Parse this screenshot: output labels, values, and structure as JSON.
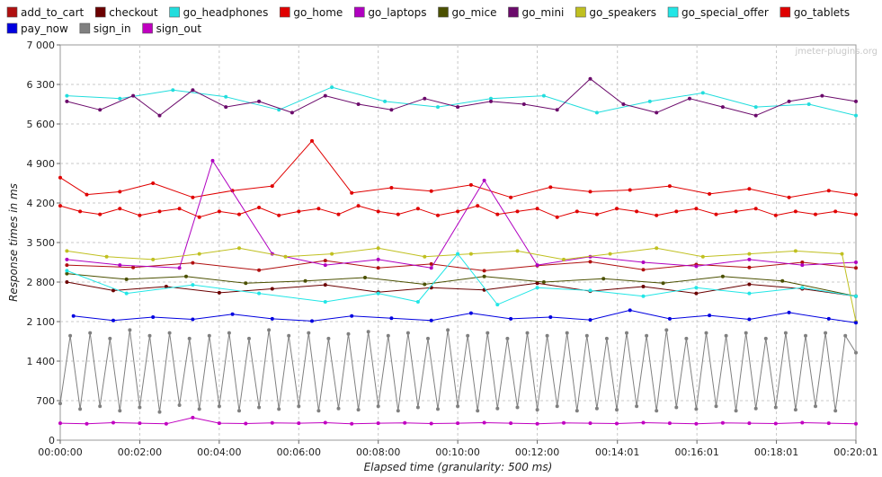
{
  "watermark": "jmeter-plugins.org",
  "chart_data": {
    "type": "line",
    "xlabel": "Elapsed time (granularity: 500 ms)",
    "ylabel": "Response times in ms",
    "ylim": [
      0,
      7000
    ],
    "xlim_seconds": [
      0,
      1201
    ],
    "y_ticks": [
      0,
      700,
      1400,
      2100,
      2800,
      3500,
      4200,
      4900,
      5600,
      6300,
      7000
    ],
    "y_tick_labels": [
      "0",
      "700",
      "1 400",
      "2 100",
      "2 800",
      "3 500",
      "4 200",
      "4 900",
      "5 600",
      "6 300",
      "7 000"
    ],
    "x_ticks_seconds": [
      0,
      120,
      240,
      360,
      480,
      600,
      720,
      841,
      961,
      1081,
      1201
    ],
    "x_tick_labels": [
      "00:00:00",
      "00:02:00",
      "00:04:00",
      "00:06:00",
      "00:08:00",
      "00:10:00",
      "00:12:00",
      "00:14:01",
      "00:16:01",
      "00:18:01",
      "00:20:01"
    ],
    "grid": true,
    "legend_position": "top",
    "series": [
      {
        "name": "add_to_cart",
        "color": "#b01010",
        "x": [
          10,
          110,
          200,
          300,
          400,
          480,
          560,
          640,
          720,
          800,
          880,
          960,
          1040,
          1120,
          1201
        ],
        "y": [
          3100,
          3060,
          3140,
          3010,
          3180,
          3050,
          3120,
          3000,
          3090,
          3160,
          3020,
          3110,
          3060,
          3150,
          3050
        ]
      },
      {
        "name": "checkout",
        "color": "#6b0000",
        "x": [
          10,
          80,
          160,
          240,
          320,
          400,
          480,
          560,
          640,
          720,
          800,
          880,
          960,
          1040,
          1120,
          1201
        ],
        "y": [
          2800,
          2650,
          2720,
          2610,
          2680,
          2750,
          2620,
          2700,
          2660,
          2780,
          2640,
          2720,
          2600,
          2760,
          2680,
          2550
        ]
      },
      {
        "name": "go_headphones",
        "color": "#22dddd",
        "x": [
          10,
          90,
          170,
          250,
          330,
          410,
          490,
          570,
          650,
          730,
          810,
          890,
          970,
          1050,
          1130,
          1201
        ],
        "y": [
          6100,
          6050,
          6200,
          6080,
          5850,
          6250,
          6000,
          5900,
          6050,
          6100,
          5800,
          6000,
          6150,
          5900,
          5950,
          5750
        ]
      },
      {
        "name": "go_home",
        "color": "#e00000",
        "x": [
          0,
          40,
          90,
          140,
          200,
          260,
          320,
          380,
          440,
          500,
          560,
          620,
          680,
          740,
          800,
          860,
          920,
          980,
          1040,
          1100,
          1160,
          1201
        ],
        "y": [
          4650,
          4350,
          4400,
          4550,
          4300,
          4420,
          4500,
          5300,
          4380,
          4470,
          4410,
          4520,
          4300,
          4480,
          4400,
          4430,
          4500,
          4360,
          4450,
          4300,
          4420,
          4350
        ]
      },
      {
        "name": "go_laptops",
        "color": "#b000c0",
        "x": [
          10,
          90,
          180,
          230,
          320,
          400,
          480,
          560,
          640,
          720,
          800,
          880,
          960,
          1040,
          1120,
          1201
        ],
        "y": [
          3200,
          3100,
          3050,
          4950,
          3300,
          3100,
          3200,
          3050,
          4600,
          3100,
          3250,
          3150,
          3080,
          3200,
          3100,
          3150
        ]
      },
      {
        "name": "go_mice",
        "color": "#4b5000",
        "x": [
          10,
          100,
          190,
          280,
          370,
          460,
          550,
          640,
          730,
          820,
          910,
          1000,
          1090,
          1201
        ],
        "y": [
          2950,
          2850,
          2900,
          2780,
          2820,
          2880,
          2760,
          2900,
          2800,
          2860,
          2780,
          2900,
          2820,
          2550
        ]
      },
      {
        "name": "go_mini",
        "color": "#6b0a6b",
        "x": [
          10,
          60,
          110,
          150,
          200,
          250,
          300,
          350,
          400,
          450,
          500,
          550,
          600,
          650,
          700,
          750,
          800,
          850,
          900,
          950,
          1000,
          1050,
          1100,
          1150,
          1201
        ],
        "y": [
          6000,
          5850,
          6100,
          5750,
          6200,
          5900,
          6000,
          5800,
          6100,
          5950,
          5850,
          6050,
          5900,
          6000,
          5950,
          5850,
          6400,
          5950,
          5800,
          6050,
          5900,
          5750,
          6000,
          6100,
          6000
        ]
      },
      {
        "name": "go_speakers",
        "color": "#c0c020",
        "x": [
          10,
          70,
          140,
          210,
          270,
          340,
          410,
          480,
          550,
          620,
          690,
          760,
          830,
          900,
          970,
          1040,
          1110,
          1180,
          1201
        ],
        "y": [
          3350,
          3250,
          3200,
          3300,
          3400,
          3250,
          3300,
          3400,
          3250,
          3300,
          3350,
          3200,
          3300,
          3400,
          3250,
          3300,
          3350,
          3300,
          2100
        ]
      },
      {
        "name": "go_special_offer",
        "color": "#22e6e6",
        "x": [
          10,
          100,
          200,
          300,
          400,
          480,
          540,
          600,
          660,
          720,
          800,
          880,
          960,
          1040,
          1120,
          1201
        ],
        "y": [
          3000,
          2600,
          2750,
          2600,
          2450,
          2600,
          2450,
          3300,
          2400,
          2700,
          2650,
          2550,
          2700,
          2600,
          2700,
          2550
        ]
      },
      {
        "name": "go_tablets",
        "color": "#e00000",
        "x": [
          0,
          30,
          60,
          90,
          120,
          150,
          180,
          210,
          240,
          270,
          300,
          330,
          360,
          390,
          420,
          450,
          480,
          510,
          540,
          570,
          600,
          630,
          660,
          690,
          720,
          750,
          780,
          810,
          840,
          870,
          900,
          930,
          960,
          990,
          1020,
          1050,
          1080,
          1110,
          1140,
          1170,
          1201
        ],
        "y": [
          4150,
          4050,
          4000,
          4100,
          3980,
          4050,
          4100,
          3950,
          4050,
          4000,
          4120,
          3980,
          4050,
          4100,
          4000,
          4150,
          4050,
          4000,
          4100,
          3980,
          4050,
          4150,
          4000,
          4050,
          4100,
          3950,
          4050,
          4000,
          4100,
          4050,
          3980,
          4050,
          4100,
          4000,
          4050,
          4100,
          3980,
          4050,
          4000,
          4050,
          4000
        ]
      },
      {
        "name": "pay_now",
        "color": "#0000e0",
        "x": [
          20,
          80,
          140,
          200,
          260,
          320,
          380,
          440,
          500,
          560,
          620,
          680,
          740,
          800,
          860,
          920,
          980,
          1040,
          1100,
          1160,
          1201
        ],
        "y": [
          2200,
          2120,
          2180,
          2140,
          2230,
          2150,
          2110,
          2200,
          2160,
          2120,
          2250,
          2150,
          2180,
          2130,
          2300,
          2150,
          2210,
          2140,
          2260,
          2150,
          2080
        ]
      },
      {
        "name": "sign_in",
        "color": "#808080",
        "x": [
          0,
          15,
          30,
          45,
          60,
          75,
          90,
          105,
          120,
          135,
          150,
          165,
          180,
          195,
          210,
          225,
          240,
          255,
          270,
          285,
          300,
          315,
          330,
          345,
          360,
          375,
          390,
          405,
          420,
          435,
          450,
          465,
          480,
          495,
          510,
          525,
          540,
          555,
          570,
          585,
          600,
          615,
          630,
          645,
          660,
          675,
          690,
          705,
          720,
          735,
          750,
          765,
          780,
          795,
          810,
          825,
          840,
          855,
          870,
          885,
          900,
          915,
          930,
          945,
          960,
          975,
          990,
          1005,
          1020,
          1035,
          1050,
          1065,
          1080,
          1095,
          1110,
          1125,
          1140,
          1155,
          1170,
          1185,
          1201
        ],
        "y": [
          650,
          1850,
          550,
          1900,
          600,
          1800,
          520,
          1950,
          580,
          1850,
          500,
          1900,
          620,
          1800,
          550,
          1850,
          600,
          1900,
          520,
          1800,
          580,
          1950,
          550,
          1850,
          600,
          1900,
          520,
          1800,
          560,
          1880,
          540,
          1920,
          600,
          1850,
          520,
          1900,
          580,
          1800,
          550,
          1950,
          600,
          1850,
          520,
          1900,
          560,
          1800,
          580,
          1900,
          540,
          1850,
          600,
          1900,
          520,
          1850,
          560,
          1800,
          540,
          1900,
          600,
          1850,
          520,
          1950,
          580,
          1800,
          550,
          1900,
          600,
          1850,
          520,
          1900,
          560,
          1800,
          580,
          1900,
          540,
          1850,
          600,
          1900,
          520,
          1850,
          1550
        ]
      },
      {
        "name": "sign_out",
        "color": "#c000c0",
        "x": [
          0,
          40,
          80,
          120,
          160,
          200,
          240,
          280,
          320,
          360,
          400,
          440,
          480,
          520,
          560,
          600,
          640,
          680,
          720,
          760,
          800,
          840,
          880,
          920,
          960,
          1000,
          1040,
          1080,
          1120,
          1160,
          1201
        ],
        "y": [
          300,
          290,
          310,
          300,
          290,
          400,
          300,
          295,
          305,
          300,
          310,
          290,
          300,
          305,
          295,
          300,
          310,
          300,
          290,
          305,
          300,
          295,
          310,
          300,
          290,
          305,
          300,
          295,
          310,
          300,
          290
        ]
      }
    ]
  }
}
